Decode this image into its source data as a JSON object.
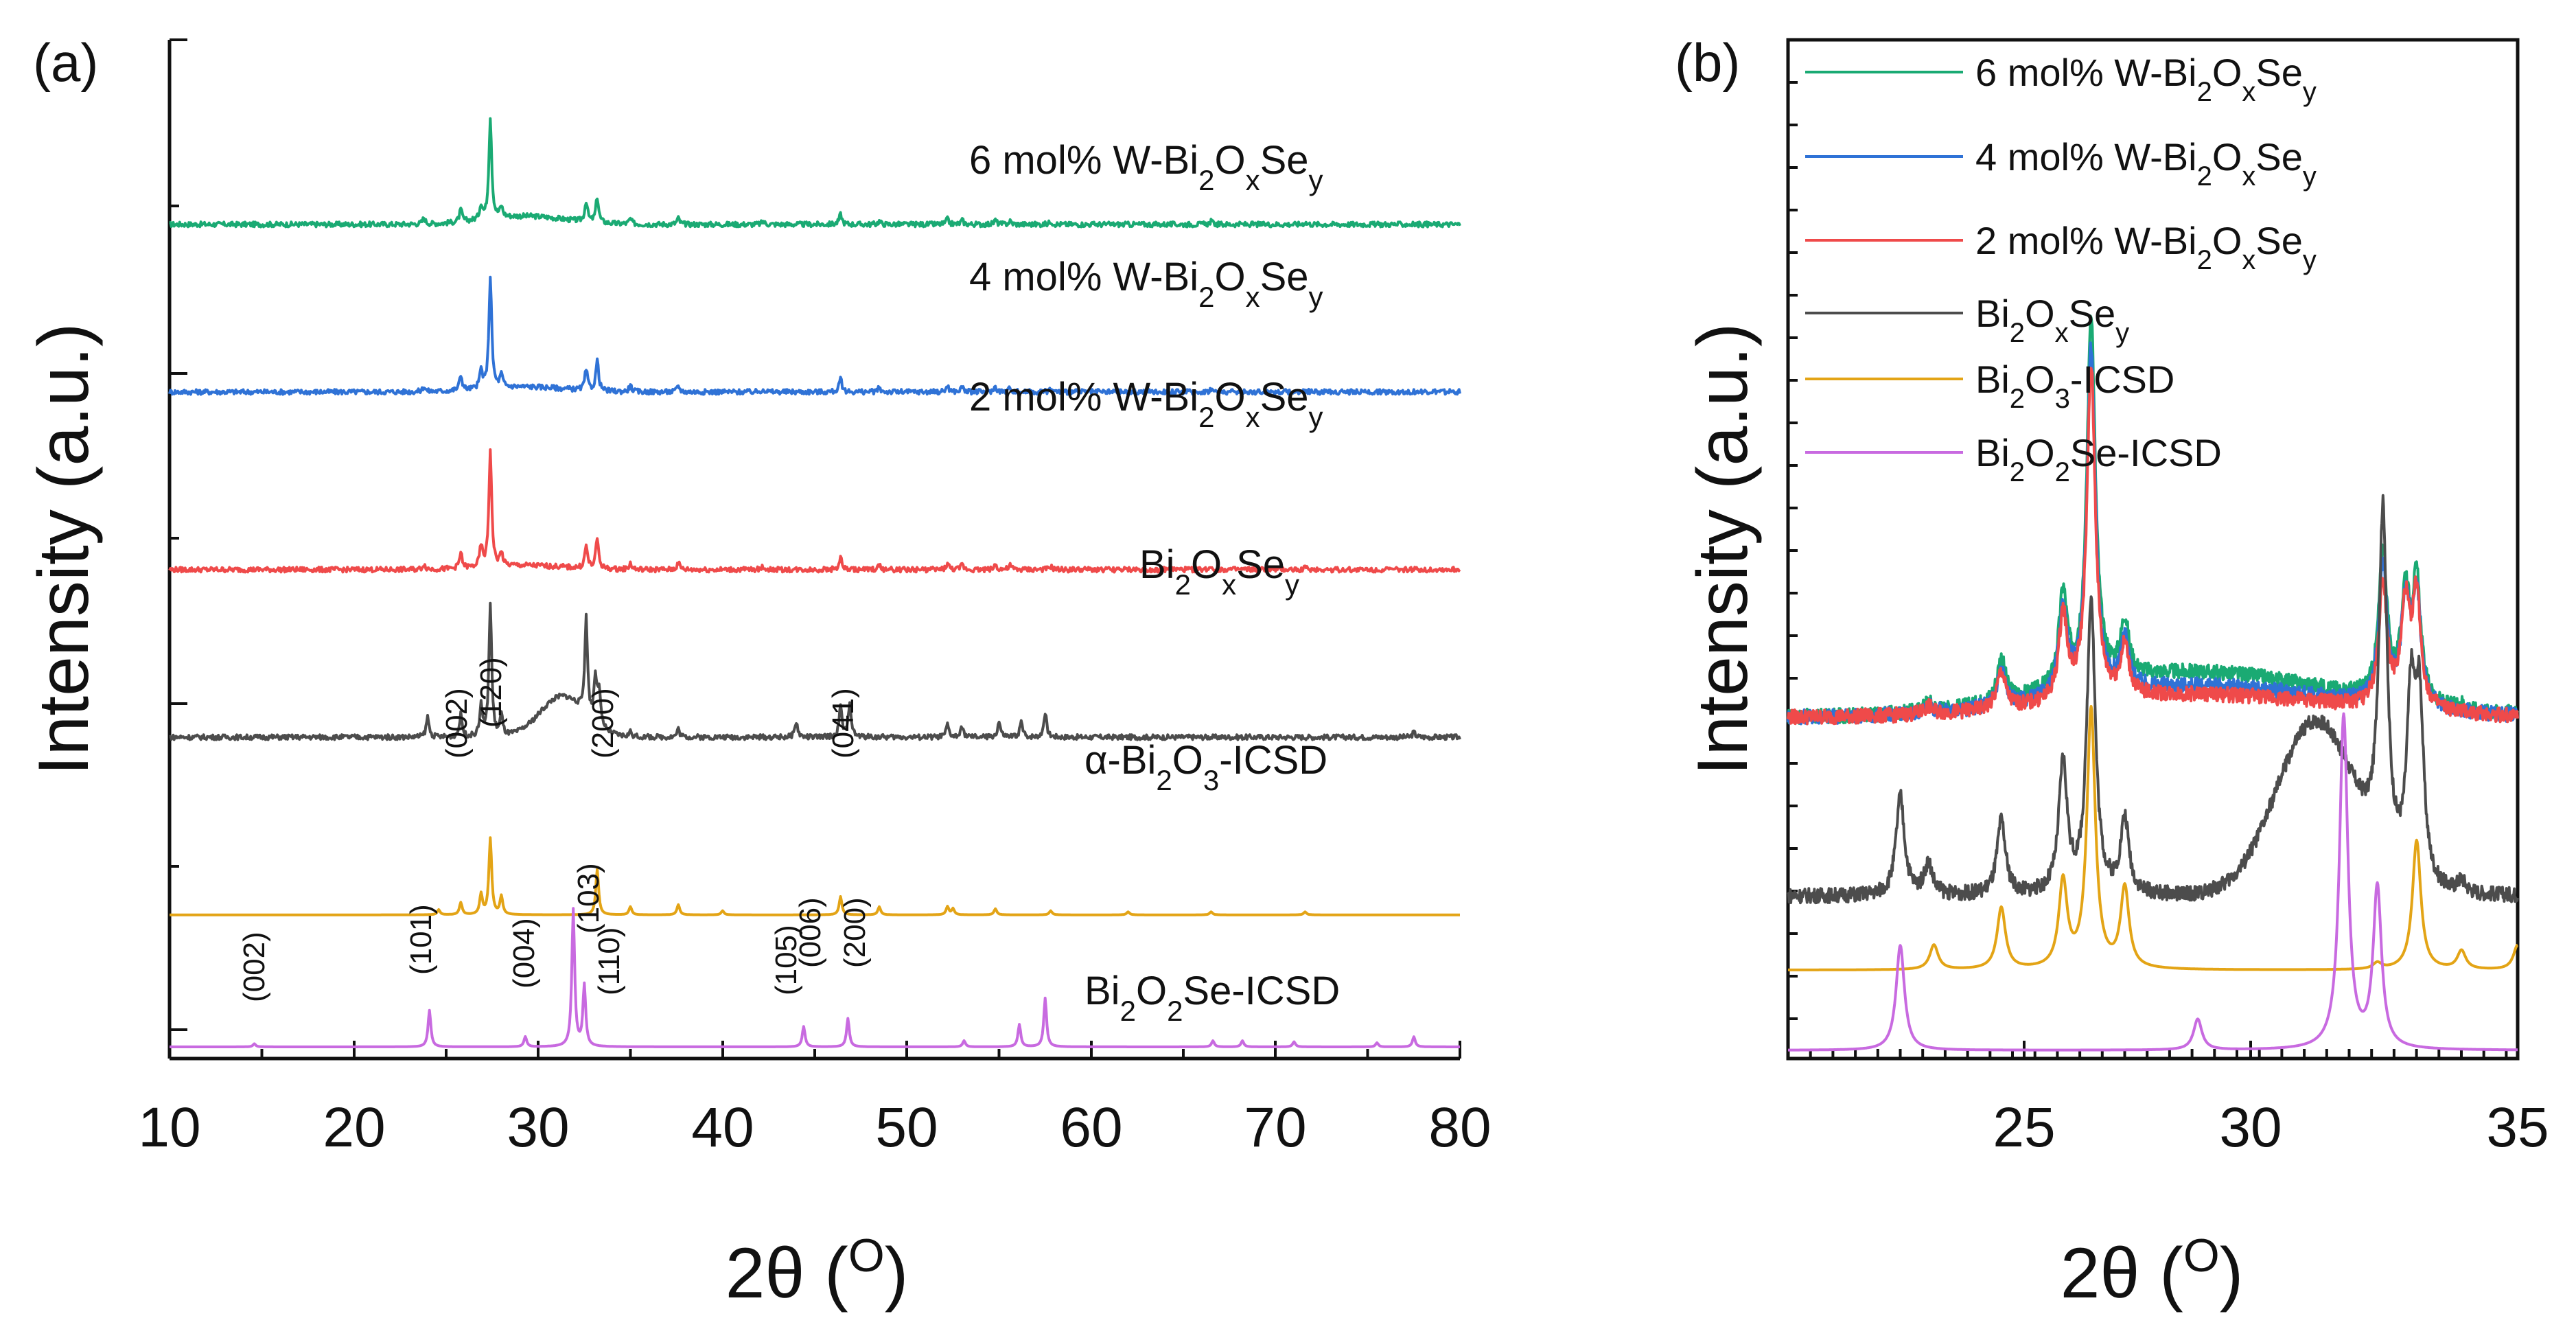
{
  "panel_a": {
    "label": "(a)",
    "xlabel_main": "2θ (",
    "xlabel_sup": "O",
    "xlabel_end": ")",
    "ylabel": "Intensity (a.u.)",
    "xticks": [
      "10",
      "20",
      "30",
      "40",
      "50",
      "60",
      "70",
      "80"
    ],
    "series": [
      {
        "key": "w6",
        "name_main": "6 mol% W-Bi",
        "sub1": "2",
        "mid": "O",
        "sub2": "x",
        "tail": "Se",
        "sub3": "y"
      },
      {
        "key": "w4",
        "name_main": "4 mol% W-Bi",
        "sub1": "2",
        "mid": "O",
        "sub2": "x",
        "tail": "Se",
        "sub3": "y"
      },
      {
        "key": "w2",
        "name_main": "2 mol% W-Bi",
        "sub1": "2",
        "mid": "O",
        "sub2": "x",
        "tail": "Se",
        "sub3": "y"
      },
      {
        "key": "base",
        "name_main": "Bi",
        "sub1": "2",
        "mid": "O",
        "sub2": "x",
        "tail": "Se",
        "sub3": "y"
      },
      {
        "key": "bi2o3",
        "name_main": "α-Bi",
        "sub1": "2",
        "mid": "O",
        "sub2": "3",
        "tail": "-ICSD",
        "sub3": ""
      },
      {
        "key": "bi2o2se",
        "name_main": "Bi",
        "sub1": "2",
        "mid": "O",
        "sub2": "2",
        "tail": "Se-ICSD",
        "sub3": ""
      }
    ],
    "bi2o3_hkl": [
      "(002)",
      "(120)",
      "(200)",
      "(041)"
    ],
    "bi2o2se_hkl": [
      "(002)",
      "(101)",
      "(004)",
      "(103)",
      "(110)",
      "(105)",
      "(006)",
      "(200)"
    ]
  },
  "panel_b": {
    "label": "(b)",
    "xlabel_main": "2θ (",
    "xlabel_sup": "O",
    "xlabel_end": ")",
    "ylabel": "Intensity (a.u.)",
    "xticks": [
      "25",
      "30",
      "35"
    ],
    "legend": [
      {
        "key": "w6",
        "name_main": "6 mol% W-Bi",
        "sub1": "2",
        "mid": "O",
        "sub2": "x",
        "tail": "Se",
        "sub3": "y"
      },
      {
        "key": "w4",
        "name_main": "4 mol% W-Bi",
        "sub1": "2",
        "mid": "O",
        "sub2": "x",
        "tail": "Se",
        "sub3": "y"
      },
      {
        "key": "w2",
        "name_main": "2 mol% W-Bi",
        "sub1": "2",
        "mid": "O",
        "sub2": "x",
        "tail": "Se",
        "sub3": "y"
      },
      {
        "key": "base",
        "name_main": "Bi",
        "sub1": "2",
        "mid": "O",
        "sub2": "x",
        "tail": "Se",
        "sub3": "y"
      },
      {
        "key": "bi2o3",
        "name_main": "Bi",
        "sub1": "2",
        "mid": "O",
        "sub2": "3",
        "tail": "-ICSD",
        "sub3": ""
      },
      {
        "key": "bi2o2se",
        "name_main": "Bi",
        "sub1": "2",
        "mid": "O",
        "sub2": "2",
        "tail": "Se-ICSD",
        "sub3": ""
      }
    ]
  },
  "colors": {
    "w6": "#1aaa73",
    "w4": "#2f72d6",
    "w2": "#ef4a4a",
    "base": "#4c4c4c",
    "bi2o3": "#e3a416",
    "bi2o2se": "#c86ae0",
    "axis": "#111111"
  },
  "chart_data": [
    {
      "type": "line",
      "title": "(a)",
      "xlabel": "2θ (O)",
      "ylabel": "Intensity (a.u.)",
      "xlim": [
        10,
        80
      ],
      "series": [
        {
          "name": "6 mol% W-Bi2OxSey",
          "offset": 8.1,
          "baseline": 0.0,
          "hump": {
            "center": 29.3,
            "width": 2.2,
            "height": 0.08
          },
          "peaks": [
            [
              23.8,
              0.06
            ],
            [
              25.8,
              0.12
            ],
            [
              26.9,
              0.14
            ],
            [
              27.4,
              1.0
            ],
            [
              28.0,
              0.1
            ],
            [
              32.6,
              0.2
            ],
            [
              33.2,
              0.25
            ],
            [
              35.0,
              0.05
            ],
            [
              37.6,
              0.06
            ],
            [
              42.2,
              0.03
            ],
            [
              46.4,
              0.1
            ],
            [
              48.5,
              0.03
            ],
            [
              52.2,
              0.05
            ],
            [
              53.0,
              0.04
            ],
            [
              54.8,
              0.04
            ],
            [
              55.6,
              0.03
            ],
            [
              57.8,
              0.03
            ],
            [
              66.5,
              0.03
            ],
            [
              71.6,
              0.02
            ]
          ]
        },
        {
          "name": "4 mol% W-Bi2OxSey",
          "offset": 6.45,
          "baseline": 0.0,
          "hump": {
            "center": 29.3,
            "width": 2.2,
            "height": 0.05
          },
          "peaks": [
            [
              23.8,
              0.05
            ],
            [
              25.8,
              0.15
            ],
            [
              26.9,
              0.18
            ],
            [
              27.4,
              1.1
            ],
            [
              28.0,
              0.12
            ],
            [
              32.6,
              0.2
            ],
            [
              33.2,
              0.3
            ],
            [
              35.0,
              0.06
            ],
            [
              37.6,
              0.06
            ],
            [
              42.2,
              0.03
            ],
            [
              46.4,
              0.13
            ],
            [
              48.5,
              0.04
            ],
            [
              52.2,
              0.06
            ],
            [
              53.0,
              0.05
            ],
            [
              54.8,
              0.05
            ],
            [
              55.6,
              0.04
            ],
            [
              57.8,
              0.03
            ],
            [
              66.5,
              0.03
            ],
            [
              71.6,
              0.02
            ]
          ]
        },
        {
          "name": "2 mol% W-Bi2OxSey",
          "offset": 4.7,
          "baseline": 0.0,
          "hump": {
            "center": 29.3,
            "width": 2.2,
            "height": 0.04
          },
          "peaks": [
            [
              23.8,
              0.05
            ],
            [
              25.8,
              0.15
            ],
            [
              26.9,
              0.2
            ],
            [
              27.4,
              1.15
            ],
            [
              28.0,
              0.13
            ],
            [
              32.6,
              0.22
            ],
            [
              33.2,
              0.3
            ],
            [
              35.0,
              0.06
            ],
            [
              37.6,
              0.07
            ],
            [
              42.2,
              0.03
            ],
            [
              46.4,
              0.12
            ],
            [
              48.5,
              0.04
            ],
            [
              52.2,
              0.06
            ],
            [
              53.0,
              0.05
            ],
            [
              54.8,
              0.05
            ],
            [
              55.6,
              0.04
            ],
            [
              57.8,
              0.03
            ],
            [
              66.5,
              0.03
            ],
            [
              71.6,
              0.02
            ]
          ]
        },
        {
          "name": "Bi2OxSey",
          "offset": 3.05,
          "baseline": 0.0,
          "hump": {
            "center": 31.3,
            "width": 1.2,
            "height": 0.4
          },
          "peaks": [
            [
              24.0,
              0.2
            ],
            [
              25.8,
              0.22
            ],
            [
              26.9,
              0.3
            ],
            [
              27.4,
              1.3
            ],
            [
              28.0,
              0.2
            ],
            [
              32.6,
              0.95
            ],
            [
              33.1,
              0.45
            ],
            [
              33.3,
              0.35
            ],
            [
              35.0,
              0.05
            ],
            [
              37.6,
              0.08
            ],
            [
              44.0,
              0.15
            ],
            [
              46.4,
              0.3
            ],
            [
              46.9,
              0.35
            ],
            [
              52.2,
              0.12
            ],
            [
              53.0,
              0.1
            ],
            [
              55.0,
              0.15
            ],
            [
              56.2,
              0.15
            ],
            [
              57.5,
              0.25
            ],
            [
              77.5,
              0.05
            ]
          ]
        },
        {
          "name": "α-Bi2O3-ICSD",
          "offset": 1.3,
          "baseline": 0.0,
          "peaks": [
            [
              24.6,
              0.05
            ],
            [
              25.8,
              0.12
            ],
            [
              26.9,
              0.2
            ],
            [
              27.4,
              0.75
            ],
            [
              28.0,
              0.18
            ],
            [
              33.2,
              0.45
            ],
            [
              35.0,
              0.08
            ],
            [
              37.6,
              0.1
            ],
            [
              40.0,
              0.04
            ],
            [
              46.4,
              0.18
            ],
            [
              48.5,
              0.08
            ],
            [
              52.2,
              0.08
            ],
            [
              52.5,
              0.06
            ],
            [
              54.8,
              0.06
            ],
            [
              57.8,
              0.04
            ],
            [
              62.0,
              0.03
            ],
            [
              66.5,
              0.03
            ],
            [
              71.6,
              0.03
            ]
          ]
        },
        {
          "name": "Bi2O2Se-ICSD",
          "offset": 0.0,
          "baseline": 0.0,
          "peaks": [
            [
              14.6,
              0.03
            ],
            [
              24.1,
              0.36
            ],
            [
              29.3,
              0.1
            ],
            [
              31.9,
              1.35
            ],
            [
              32.5,
              0.6
            ],
            [
              44.4,
              0.2
            ],
            [
              46.8,
              0.28
            ],
            [
              53.1,
              0.06
            ],
            [
              56.1,
              0.22
            ],
            [
              57.5,
              0.48
            ],
            [
              66.6,
              0.06
            ],
            [
              68.2,
              0.06
            ],
            [
              71.0,
              0.05
            ],
            [
              75.5,
              0.04
            ],
            [
              77.5,
              0.1
            ]
          ]
        }
      ],
      "annotations": {
        "α-Bi2O3-ICSD": [
          [
            "(002)",
            26.9
          ],
          [
            "(120)",
            27.5
          ],
          [
            "(200)",
            33.2
          ],
          [
            "(041)",
            46.4
          ]
        ],
        "Bi2O2Se-ICSD": [
          [
            "(002)",
            14.6
          ],
          [
            "(101)",
            24.0
          ],
          [
            "(004)",
            29.3
          ],
          [
            "(103)",
            32.0
          ],
          [
            "(110)",
            32.6
          ],
          [
            "(105)",
            44.5
          ],
          [
            "(006)",
            45.6
          ],
          [
            "(200)",
            46.8
          ]
        ]
      }
    },
    {
      "type": "line",
      "title": "(b)",
      "xlabel": "2θ (O)",
      "ylabel": "Intensity (a.u.)",
      "xlim": [
        22,
        35
      ],
      "series": [
        {
          "name": "6 mol% W-Bi2OxSey",
          "offset": 2.7,
          "baseline": 0.0,
          "hump": {
            "center": 29.3,
            "width": 2.4,
            "height": 0.36
          },
          "peaks": [
            [
              24.5,
              0.08
            ],
            [
              25.8,
              0.35
            ],
            [
              26.9,
              0.75
            ],
            [
              27.4,
              3.0
            ],
            [
              28.0,
              0.45
            ],
            [
              32.6,
              1.2
            ],
            [
              33.0,
              0.85
            ],
            [
              33.2,
              0.95
            ],
            [
              34.0,
              0.05
            ],
            [
              35.0,
              0.05
            ]
          ]
        },
        {
          "name": "4 mol% W-Bi2OxSey",
          "offset": 2.7,
          "baseline": 0.0,
          "hump": {
            "center": 29.3,
            "width": 2.4,
            "height": 0.25
          },
          "peaks": [
            [
              24.5,
              0.06
            ],
            [
              25.8,
              0.3
            ],
            [
              26.9,
              0.7
            ],
            [
              27.4,
              2.8
            ],
            [
              28.0,
              0.4
            ],
            [
              32.6,
              1.1
            ],
            [
              33.0,
              0.8
            ],
            [
              33.2,
              0.9
            ]
          ]
        },
        {
          "name": "2 mol% W-Bi2OxSey",
          "offset": 2.7,
          "baseline": 0.0,
          "hump": {
            "center": 29.3,
            "width": 2.4,
            "height": 0.18
          },
          "peaks": [
            [
              24.5,
              0.06
            ],
            [
              25.8,
              0.3
            ],
            [
              26.9,
              0.7
            ],
            [
              27.4,
              2.7
            ],
            [
              28.0,
              0.4
            ],
            [
              32.6,
              1.0
            ],
            [
              33.0,
              0.8
            ],
            [
              33.2,
              0.9
            ]
          ]
        },
        {
          "name": "Bi2OxSey",
          "offset": 1.25,
          "baseline": 0.0,
          "hump": {
            "center": 31.4,
            "width": 0.7,
            "height": 1.4
          },
          "peaks": [
            [
              24.0,
              0.8
            ],
            [
              24.5,
              0.25
            ],
            [
              25.8,
              0.6
            ],
            [
              26.9,
              1.05
            ],
            [
              27.4,
              2.4
            ],
            [
              28.0,
              0.6
            ],
            [
              32.6,
              2.8
            ],
            [
              33.1,
              1.4
            ],
            [
              33.25,
              1.4
            ],
            [
              34.0,
              0.1
            ]
          ]
        },
        {
          "name": "Bi2O3-ICSD",
          "offset": 0.65,
          "baseline": 0.0,
          "peaks": [
            [
              24.6,
              0.2
            ],
            [
              25.8,
              0.5
            ],
            [
              26.9,
              0.7
            ],
            [
              27.4,
              2.1
            ],
            [
              28.0,
              0.65
            ],
            [
              32.5,
              0.05
            ],
            [
              33.2,
              1.05
            ],
            [
              34.0,
              0.15
            ],
            [
              35.0,
              0.2
            ]
          ]
        },
        {
          "name": "Bi2O2Se-ICSD",
          "offset": 0.0,
          "baseline": 0.0,
          "peaks": [
            [
              24.0,
              0.85
            ],
            [
              29.3,
              0.25
            ],
            [
              31.9,
              2.7
            ],
            [
              32.5,
              1.3
            ]
          ]
        }
      ]
    }
  ]
}
